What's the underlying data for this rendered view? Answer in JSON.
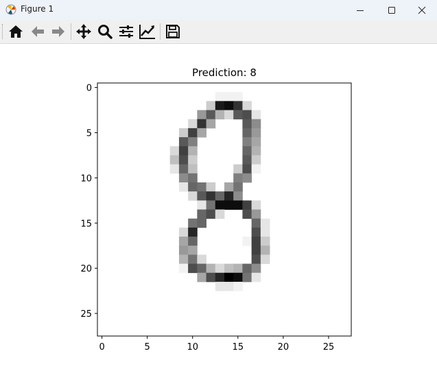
{
  "window": {
    "title": "Figure 1"
  },
  "toolbar": {
    "buttons": [
      {
        "name": "home",
        "icon": "home-icon"
      },
      {
        "name": "back",
        "icon": "arrow-left-icon"
      },
      {
        "name": "forward",
        "icon": "arrow-right-icon"
      },
      {
        "name": "pan",
        "icon": "move-icon"
      },
      {
        "name": "zoom",
        "icon": "magnifier-icon"
      },
      {
        "name": "subplots",
        "icon": "sliders-icon"
      },
      {
        "name": "customize",
        "icon": "line-chart-icon"
      },
      {
        "name": "save",
        "icon": "floppy-disk-icon"
      }
    ]
  },
  "plot": {
    "title": "Prediction: 8",
    "xticks": [
      "0",
      "5",
      "10",
      "15",
      "20",
      "25"
    ],
    "yticks": [
      "0",
      "5",
      "10",
      "15",
      "20",
      "25"
    ]
  },
  "chart_data": {
    "type": "heatmap",
    "title": "Prediction: 8",
    "colormap": "gray_r",
    "shape": [
      28,
      28
    ],
    "value_range": [
      0,
      1
    ],
    "xlim": [
      -0.5,
      27.5
    ],
    "ylim": [
      27.5,
      -0.5
    ],
    "pixels": [
      [
        1,
        13,
        0.05
      ],
      [
        1,
        14,
        0.05
      ],
      [
        1,
        15,
        0.05
      ],
      [
        2,
        12,
        0.2
      ],
      [
        2,
        13,
        0.9
      ],
      [
        2,
        14,
        0.95
      ],
      [
        2,
        15,
        0.8
      ],
      [
        2,
        16,
        0.15
      ],
      [
        3,
        11,
        0.4
      ],
      [
        3,
        12,
        0.65
      ],
      [
        3,
        13,
        0.3
      ],
      [
        3,
        14,
        0.15
      ],
      [
        3,
        15,
        0.65
      ],
      [
        3,
        16,
        0.7
      ],
      [
        3,
        17,
        0.1
      ],
      [
        4,
        10,
        0.15
      ],
      [
        4,
        11,
        0.8
      ],
      [
        4,
        12,
        0.35
      ],
      [
        4,
        16,
        0.65
      ],
      [
        4,
        17,
        0.45
      ],
      [
        5,
        9,
        0.2
      ],
      [
        5,
        10,
        0.75
      ],
      [
        5,
        11,
        0.35
      ],
      [
        5,
        16,
        0.6
      ],
      [
        5,
        17,
        0.4
      ],
      [
        6,
        9,
        0.65
      ],
      [
        6,
        10,
        0.5
      ],
      [
        6,
        16,
        0.5
      ],
      [
        6,
        17,
        0.35
      ],
      [
        7,
        8,
        0.15
      ],
      [
        7,
        9,
        0.75
      ],
      [
        7,
        10,
        0.3
      ],
      [
        7,
        16,
        0.6
      ],
      [
        7,
        17,
        0.3
      ],
      [
        8,
        8,
        0.25
      ],
      [
        8,
        9,
        0.7
      ],
      [
        8,
        10,
        0.2
      ],
      [
        8,
        16,
        0.65
      ],
      [
        8,
        17,
        0.2
      ],
      [
        9,
        8,
        0.1
      ],
      [
        9,
        9,
        0.6
      ],
      [
        9,
        10,
        0.25
      ],
      [
        9,
        15,
        0.2
      ],
      [
        9,
        16,
        0.7
      ],
      [
        9,
        17,
        0.05
      ],
      [
        10,
        9,
        0.45
      ],
      [
        10,
        10,
        0.55
      ],
      [
        10,
        15,
        0.5
      ],
      [
        10,
        16,
        0.45
      ],
      [
        11,
        9,
        0.1
      ],
      [
        11,
        10,
        0.6
      ],
      [
        11,
        11,
        0.55
      ],
      [
        11,
        12,
        0.2
      ],
      [
        11,
        14,
        0.35
      ],
      [
        11,
        15,
        0.55
      ],
      [
        12,
        10,
        0.15
      ],
      [
        12,
        11,
        0.65
      ],
      [
        12,
        12,
        0.8
      ],
      [
        12,
        13,
        0.6
      ],
      [
        12,
        14,
        0.85
      ],
      [
        12,
        15,
        0.45
      ],
      [
        13,
        11,
        0.1
      ],
      [
        13,
        12,
        0.55
      ],
      [
        13,
        13,
        0.95
      ],
      [
        13,
        14,
        0.95
      ],
      [
        13,
        15,
        0.95
      ],
      [
        13,
        16,
        0.75
      ],
      [
        13,
        17,
        0.15
      ],
      [
        14,
        11,
        0.6
      ],
      [
        14,
        12,
        0.7
      ],
      [
        14,
        13,
        0.15
      ],
      [
        14,
        16,
        0.7
      ],
      [
        14,
        17,
        0.4
      ],
      [
        15,
        10,
        0.55
      ],
      [
        15,
        11,
        0.6
      ],
      [
        15,
        17,
        0.6
      ],
      [
        15,
        18,
        0.1
      ],
      [
        16,
        9,
        0.15
      ],
      [
        16,
        10,
        0.85
      ],
      [
        16,
        17,
        0.7
      ],
      [
        16,
        18,
        0.1
      ],
      [
        17,
        9,
        0.35
      ],
      [
        17,
        10,
        0.6
      ],
      [
        17,
        16,
        0.05
      ],
      [
        17,
        17,
        0.75
      ],
      [
        17,
        18,
        0.2
      ],
      [
        18,
        9,
        0.4
      ],
      [
        18,
        10,
        0.35
      ],
      [
        18,
        17,
        0.75
      ],
      [
        18,
        18,
        0.3
      ],
      [
        19,
        9,
        0.3
      ],
      [
        19,
        10,
        0.55
      ],
      [
        19,
        11,
        0.15
      ],
      [
        19,
        17,
        0.7
      ],
      [
        19,
        18,
        0.15
      ],
      [
        20,
        9,
        0.05
      ],
      [
        20,
        10,
        0.7
      ],
      [
        20,
        11,
        0.6
      ],
      [
        20,
        12,
        0.3
      ],
      [
        20,
        13,
        0.15
      ],
      [
        20,
        14,
        0.25
      ],
      [
        20,
        15,
        0.3
      ],
      [
        20,
        16,
        0.6
      ],
      [
        20,
        17,
        0.45
      ],
      [
        21,
        11,
        0.35
      ],
      [
        21,
        12,
        0.7
      ],
      [
        21,
        13,
        0.85
      ],
      [
        21,
        14,
        1.0
      ],
      [
        21,
        15,
        0.95
      ],
      [
        21,
        16,
        0.55
      ],
      [
        21,
        17,
        0.1
      ],
      [
        22,
        13,
        0.1
      ],
      [
        22,
        14,
        0.1
      ],
      [
        22,
        15,
        0.05
      ]
    ]
  }
}
